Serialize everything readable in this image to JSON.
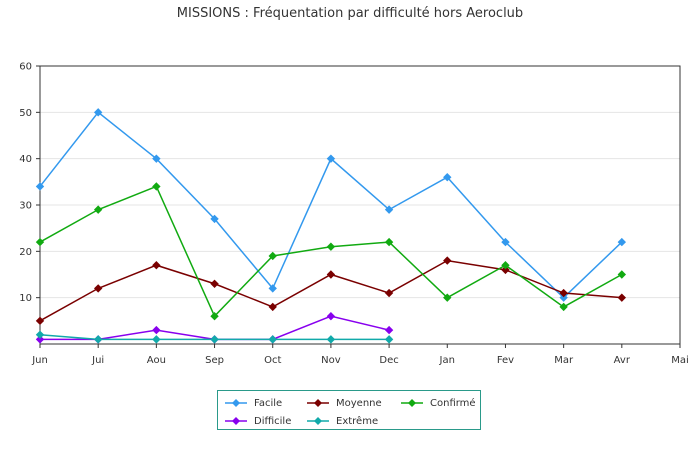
{
  "chart_data": {
    "type": "line",
    "title": "MISSIONS : Fréquentation par difficulté hors Aeroclub",
    "categories": [
      "Jun",
      "Jui",
      "Aou",
      "Sep",
      "Oct",
      "Nov",
      "Dec",
      "Jan",
      "Fev",
      "Mar",
      "Avr",
      "Mai"
    ],
    "yticks": [
      10,
      20,
      30,
      40,
      50,
      60
    ],
    "ylim": [
      0,
      60
    ],
    "grid": true,
    "legend_position": "bottom",
    "series": [
      {
        "name": "Facile",
        "color": "#3399ee",
        "values": [
          34,
          50,
          40,
          27,
          12,
          40,
          29,
          36,
          22,
          10,
          22,
          null
        ]
      },
      {
        "name": "Moyenne",
        "color": "#7a0000",
        "values": [
          5,
          12,
          17,
          13,
          8,
          15,
          11,
          18,
          16,
          11,
          10,
          null
        ]
      },
      {
        "name": "Confirmé",
        "color": "#11aa11",
        "values": [
          22,
          29,
          34,
          6,
          19,
          21,
          22,
          10,
          17,
          8,
          15,
          null
        ]
      },
      {
        "name": "Difficile",
        "color": "#8800ee",
        "values": [
          1,
          1,
          3,
          1,
          1,
          6,
          3,
          null,
          null,
          null,
          null,
          null
        ]
      },
      {
        "name": "Extrême",
        "color": "#11aaaa",
        "values": [
          2,
          1,
          1,
          1,
          1,
          1,
          1,
          null,
          null,
          null,
          null,
          null
        ]
      }
    ]
  }
}
